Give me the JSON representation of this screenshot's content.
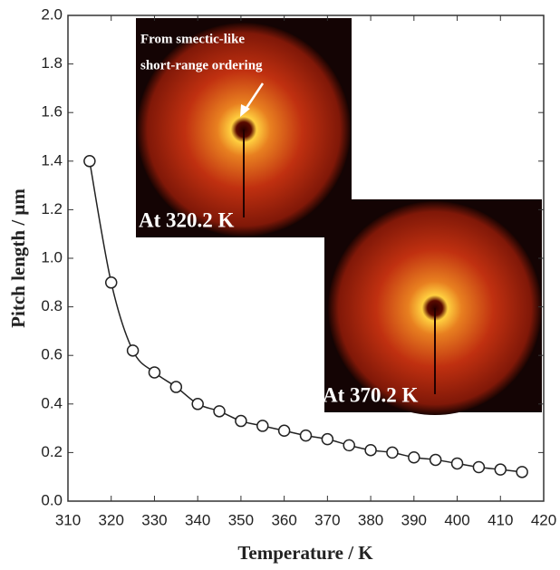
{
  "chart_data": {
    "type": "line",
    "x_label": "Temperature / K",
    "y_label": "Pitch length / μm",
    "annotations": [
      "From smectic-like",
      "short-range ordering",
      "At 320.2 K",
      "At 370.2 K"
    ],
    "x": [
      315,
      320,
      325,
      330,
      335,
      340,
      345,
      350,
      355,
      360,
      365,
      370,
      375,
      380,
      385,
      390,
      395,
      400,
      405,
      410,
      415
    ],
    "series": [
      {
        "color": "#222222",
        "values": [
          1.4,
          0.9,
          0.62,
          0.53,
          0.47,
          0.4,
          0.37,
          0.33,
          0.31,
          0.29,
          0.27,
          0.255,
          0.23,
          0.21,
          0.2,
          0.18,
          0.17,
          0.155,
          0.14,
          0.13,
          0.12
        ]
      }
    ],
    "xlim": [
      310,
      420
    ],
    "xticks": [
      310,
      320,
      330,
      340,
      350,
      360,
      370,
      380,
      390,
      400,
      410,
      420
    ],
    "ylim": [
      0,
      2.0
    ],
    "yticks": [
      {
        "value": 0,
        "label": "0.0"
      },
      0.2,
      0.4,
      0.6,
      0.8,
      {
        "value": 1.0,
        "label": "1.0"
      },
      1.2,
      1.4,
      1.6,
      1.8,
      {
        "value": 2.0,
        "label": "2.0"
      }
    ],
    "grid": false
  }
}
